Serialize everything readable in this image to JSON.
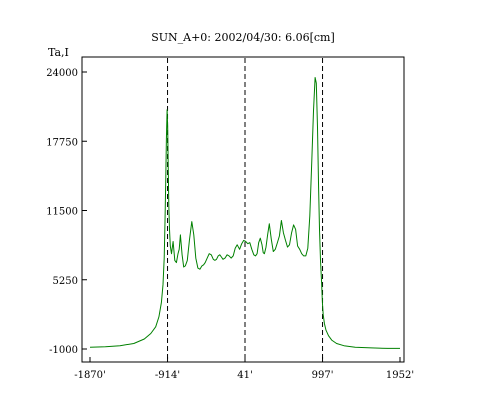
{
  "chart_data": {
    "type": "line",
    "title": "SUN_A+0: 2002/04/30: 6.06[cm]",
    "ylabel": "Ta,I",
    "xlabel": "",
    "xlim": [
      -1870,
      1952
    ],
    "ylim": [
      -1000,
      24000
    ],
    "grid": false,
    "x_ticks": [
      {
        "value": -1870,
        "label": "-1870'"
      },
      {
        "value": -914,
        "label": "-914'"
      },
      {
        "value": 41,
        "label": "41'"
      },
      {
        "value": 997,
        "label": "997'"
      },
      {
        "value": 1952,
        "label": "1952'"
      }
    ],
    "y_ticks": [
      {
        "value": -1000,
        "label": "-1000"
      },
      {
        "value": 5250,
        "label": "5250"
      },
      {
        "value": 11500,
        "label": "11500"
      },
      {
        "value": 17750,
        "label": "17750"
      },
      {
        "value": 24000,
        "label": "24000"
      }
    ],
    "vlines": [
      -914,
      41,
      997
    ],
    "series": [
      {
        "color": "#008000",
        "x": [
          -1870,
          -1680,
          -1500,
          -1330,
          -1200,
          -1120,
          -1060,
          -1020,
          -990,
          -970,
          -955,
          -945,
          -935,
          -928,
          -920,
          -912,
          -905,
          -898,
          -890,
          -880,
          -865,
          -845,
          -825,
          -805,
          -785,
          -770,
          -755,
          -735,
          -715,
          -695,
          -670,
          -645,
          -615,
          -590,
          -565,
          -540,
          -515,
          -490,
          -470,
          -450,
          -425,
          -400,
          -375,
          -350,
          -330,
          -310,
          -290,
          -270,
          -250,
          -230,
          -205,
          -180,
          -155,
          -130,
          -105,
          -80,
          -55,
          -25,
          0,
          25,
          50,
          75,
          100,
          125,
          150,
          170,
          190,
          210,
          230,
          250,
          265,
          280,
          300,
          320,
          340,
          365,
          390,
          415,
          440,
          465,
          490,
          515,
          540,
          565,
          590,
          615,
          640,
          665,
          690,
          715,
          740,
          765,
          790,
          815,
          840,
          865,
          885,
          905,
          920,
          935,
          948,
          960,
          972,
          985,
          995,
          1005,
          1020,
          1040,
          1070,
          1110,
          1170,
          1260,
          1400,
          1600,
          1800,
          1952
        ],
        "y": [
          -850,
          -800,
          -700,
          -500,
          -100,
          400,
          1000,
          1900,
          3200,
          4800,
          7200,
          10500,
          14500,
          18000,
          20600,
          19000,
          15000,
          12000,
          9800,
          8300,
          7600,
          8700,
          7000,
          6800,
          7600,
          8000,
          9300,
          7500,
          6400,
          6500,
          7000,
          8800,
          10500,
          9300,
          7200,
          6300,
          6200,
          6500,
          6600,
          6800,
          7200,
          7600,
          7500,
          7100,
          7000,
          7100,
          7400,
          7500,
          7300,
          7100,
          7200,
          7500,
          7400,
          7200,
          7400,
          8100,
          8400,
          8000,
          8500,
          8800,
          8700,
          8500,
          8600,
          8000,
          7500,
          7400,
          7600,
          8600,
          9000,
          8400,
          7700,
          7600,
          8200,
          9300,
          10300,
          8900,
          7800,
          8000,
          8600,
          9200,
          10600,
          9500,
          8800,
          8200,
          8400,
          9500,
          10200,
          9800,
          8300,
          8000,
          7600,
          7400,
          7400,
          8100,
          11000,
          16000,
          20500,
          23500,
          23000,
          19000,
          13500,
          9800,
          7000,
          5000,
          3200,
          2100,
          1300,
          700,
          200,
          -200,
          -500,
          -700,
          -850,
          -900,
          -950,
          -950
        ]
      }
    ]
  }
}
